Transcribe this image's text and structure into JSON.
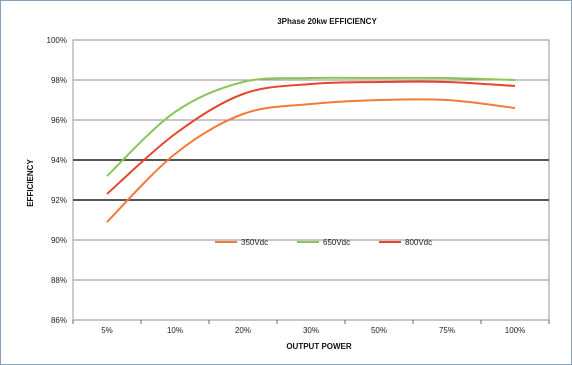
{
  "chart_data": {
    "type": "line",
    "title": "3Phase 20kw  EFFICIENCY",
    "xlabel": "OUTPUT POWER",
    "ylabel": "EFFICIENCY",
    "categories": [
      "5%",
      "10%",
      "20%",
      "30%",
      "50%",
      "75%",
      "100%"
    ],
    "y_ticks": [
      "86%",
      "88%",
      "90%",
      "92%",
      "94%",
      "96%",
      "98%",
      "100%"
    ],
    "ylim": [
      86,
      100
    ],
    "grid": true,
    "legend_position": "lower-center",
    "series": [
      {
        "name": "350Vdc",
        "color": "#f4793a",
        "values": [
          90.9,
          94.3,
          96.3,
          96.8,
          97.0,
          97.0,
          96.6
        ]
      },
      {
        "name": "650Vdc",
        "color": "#8dc45a",
        "values": [
          93.2,
          96.4,
          97.9,
          98.1,
          98.1,
          98.1,
          98.0
        ]
      },
      {
        "name": "800Vdc",
        "color": "#e8432c",
        "values": [
          92.3,
          95.3,
          97.3,
          97.8,
          97.9,
          97.9,
          97.7
        ]
      }
    ]
  }
}
